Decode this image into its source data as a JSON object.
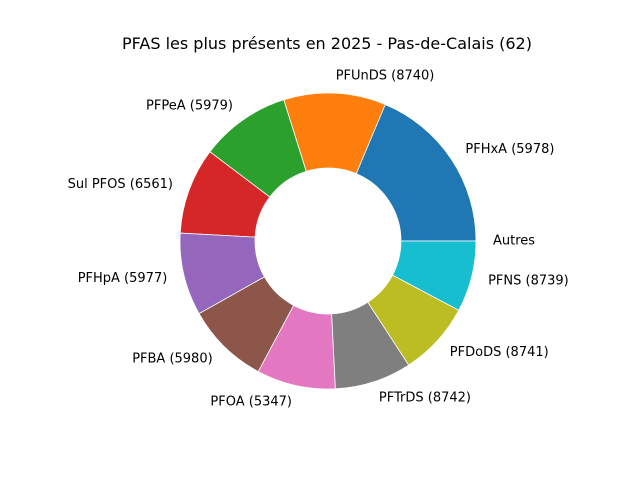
{
  "chart_data": {
    "type": "pie",
    "donut": true,
    "title": "PFAS les plus présents en 2025 - Pas-de-Calais (62)",
    "start_angle_deg": 0,
    "direction": "counterclockwise",
    "slices": [
      {
        "label": "Autres",
        "value": 0.0,
        "color": "#9467bd"
      },
      {
        "label": "PFHxA (5978)",
        "value": 17.6,
        "color": "#1f77b4"
      },
      {
        "label": "PFUnDS (8740)",
        "value": 10.5,
        "color": "#ff7f0e"
      },
      {
        "label": "PFPeA (5979)",
        "value": 9.3,
        "color": "#2ca02c"
      },
      {
        "label": "Sul PFOS (6561)",
        "value": 8.9,
        "color": "#d62728"
      },
      {
        "label": "PFHpA (5977)",
        "value": 8.5,
        "color": "#9467bd"
      },
      {
        "label": "PFBA (5980)",
        "value": 8.5,
        "color": "#8c564b"
      },
      {
        "label": "PFOA (5347)",
        "value": 8.1,
        "color": "#e377c2"
      },
      {
        "label": "PFTrDS (8742)",
        "value": 7.9,
        "color": "#7f7f7f"
      },
      {
        "label": "PFDoDS (8741)",
        "value": 7.6,
        "color": "#bcbd22"
      },
      {
        "label": "PFNS (8739)",
        "value": 7.3,
        "color": "#17becf"
      }
    ]
  }
}
